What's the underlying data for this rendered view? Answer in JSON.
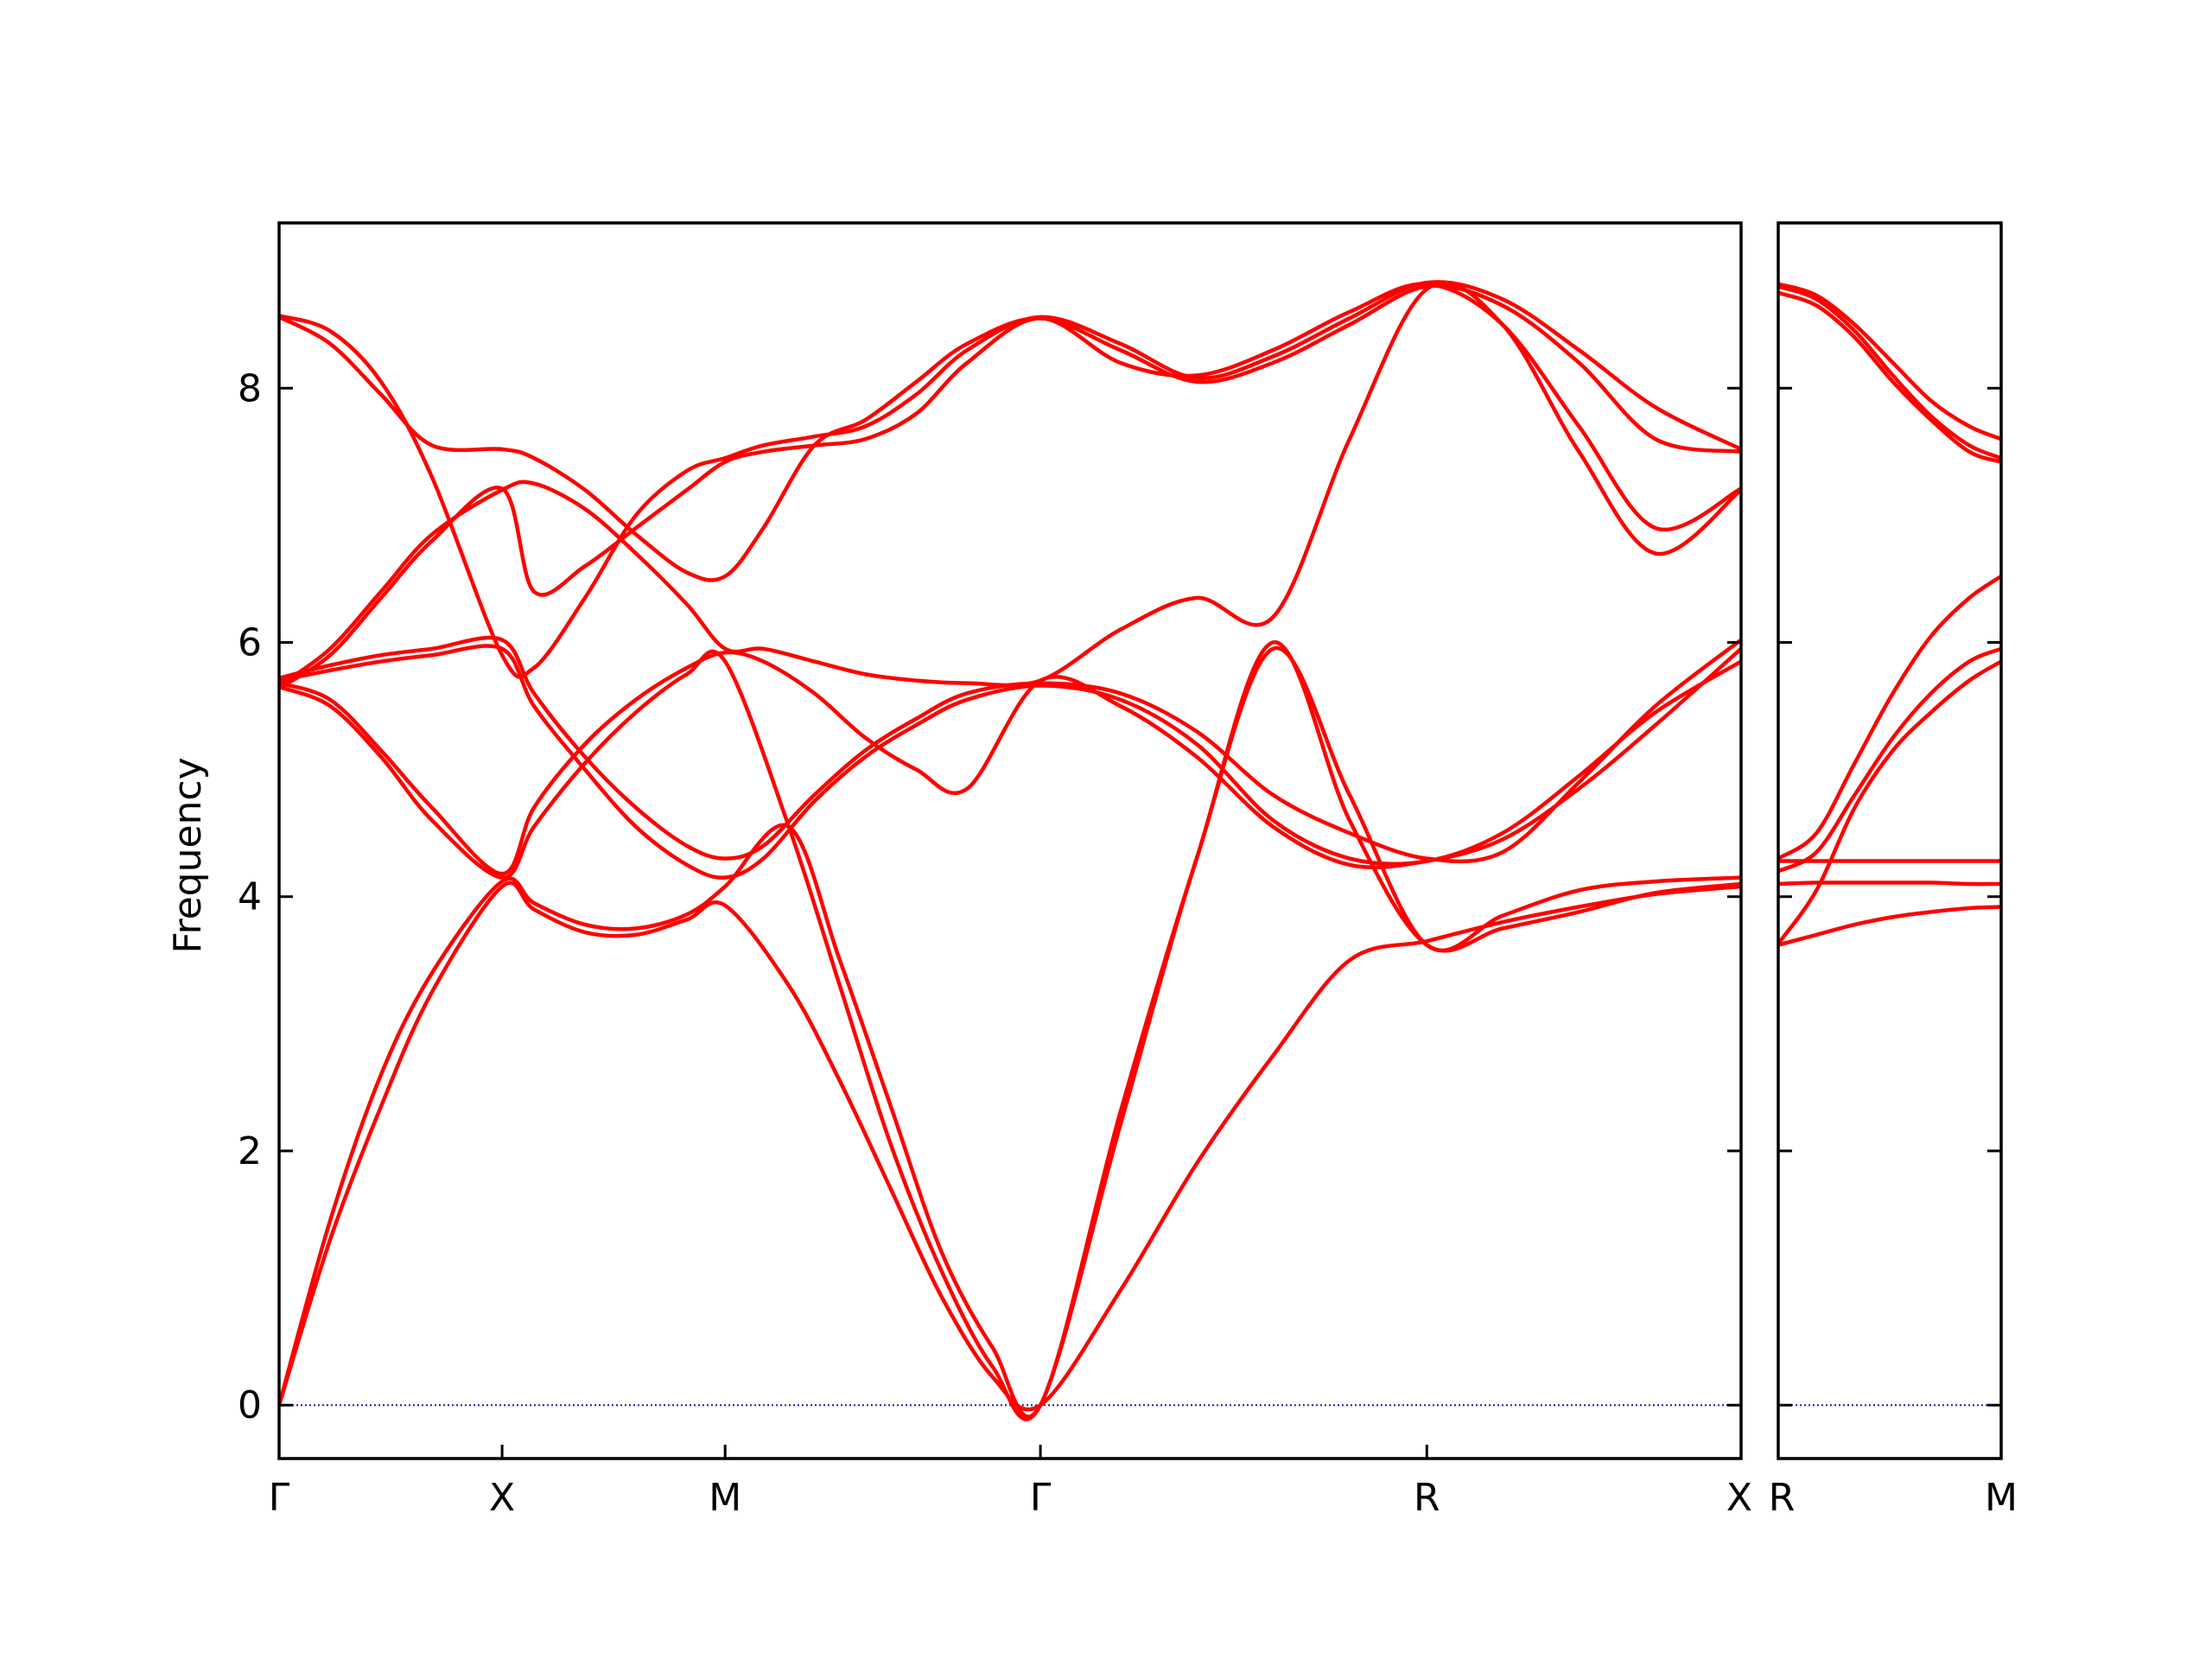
{
  "chart_data": {
    "type": "line",
    "ylabel": "Frequency",
    "ylim": [
      -0.42,
      9.3
    ],
    "yticks": [
      "0",
      "2",
      "4",
      "6",
      "8"
    ],
    "ytick_values": [
      0,
      2,
      4,
      6,
      8
    ],
    "grid": false,
    "colors": {
      "bands": "#ff0000",
      "zero_line": "#1a1aa8",
      "frame": "#000000"
    },
    "panels": [
      {
        "name": "Γ-X-M-Γ-R-X",
        "xlim": [
          0,
          5.736
        ],
        "xticks": [
          {
            "label": "Γ",
            "x": 0
          },
          {
            "label": "X",
            "x": 0.875
          },
          {
            "label": "M",
            "x": 1.75
          },
          {
            "label": "Γ",
            "x": 2.987
          },
          {
            "label": "R",
            "x": 4.503
          },
          {
            "label": "X",
            "x": 5.736
          }
        ],
        "series": [
          {
            "x": [
              0,
              0.2,
              0.4,
              0.6,
              0.875,
              1.0,
              1.2,
              1.4,
              1.6,
              1.75,
              2.0,
              2.2,
              2.4,
              2.6,
              2.8,
              2.987,
              3.3,
              3.6,
              3.9,
              4.2,
              4.503,
              4.8,
              5.1,
              5.4,
              5.736
            ],
            "y": [
              0,
              1.3,
              2.35,
              3.25,
              4.08,
              3.9,
              3.72,
              3.7,
              3.82,
              3.93,
              3.3,
              2.55,
              1.7,
              0.85,
              0.22,
              0,
              0.9,
              1.9,
              2.75,
              3.5,
              3.65,
              3.8,
              3.92,
              4.02,
              4.08
            ]
          },
          {
            "x": [
              0,
              0.2,
              0.4,
              0.6,
              0.875,
              1.0,
              1.2,
              1.4,
              1.6,
              1.75,
              2.0,
              2.2,
              2.4,
              2.6,
              2.8,
              2.987,
              3.3,
              3.6,
              3.9,
              4.2,
              4.503,
              4.8,
              5.1,
              5.4,
              5.736
            ],
            "y": [
              0,
              1.45,
              2.6,
              3.4,
              4.12,
              3.95,
              3.78,
              3.75,
              3.86,
              4.08,
              4.55,
              3.5,
              2.35,
              1.2,
              0.45,
              0,
              2.3,
              4.3,
              6.0,
              4.6,
              3.62,
              3.75,
              3.88,
              4.03,
              4.1
            ]
          },
          {
            "x": [
              0,
              0.2,
              0.4,
              0.6,
              0.875,
              1.0,
              1.2,
              1.4,
              1.6,
              1.75,
              2.0,
              2.2,
              2.4,
              2.6,
              2.8,
              2.987,
              3.3,
              3.6,
              3.9,
              4.2,
              4.503,
              4.8,
              5.1,
              5.4,
              5.736
            ],
            "y": [
              5.65,
              5.5,
              5.1,
              4.6,
              4.15,
              4.55,
              5.05,
              5.45,
              5.75,
              5.85,
              4.55,
              3.3,
              2.05,
              1.05,
              0.3,
              0,
              2.2,
              4.3,
              5.95,
              4.8,
              3.62,
              3.85,
              4.05,
              4.12,
              4.15
            ]
          },
          {
            "x": [
              0,
              0.2,
              0.4,
              0.6,
              0.875,
              1.0,
              1.2,
              1.4,
              1.6,
              1.75,
              1.9,
              2.1,
              2.3,
              2.5,
              2.7,
              2.987,
              3.3,
              3.6,
              3.9,
              4.2,
              4.503,
              4.8,
              5.1,
              5.4,
              5.736
            ],
            "y": [
              5.68,
              5.55,
              5.15,
              4.7,
              4.18,
              4.7,
              5.2,
              5.55,
              5.8,
              5.92,
              5.85,
              5.6,
              5.25,
              5.0,
              4.85,
              5.7,
              5.5,
              5.1,
              4.55,
              4.25,
              4.28,
              4.45,
              4.85,
              5.35,
              5.95
            ]
          },
          {
            "x": [
              0,
              0.2,
              0.4,
              0.6,
              0.875,
              1.0,
              1.2,
              1.4,
              1.6,
              1.75,
              1.9,
              2.1,
              2.3,
              2.5,
              2.7,
              2.987,
              3.3,
              3.6,
              3.9,
              4.2,
              4.503,
              4.8,
              5.1,
              5.4,
              5.736
            ],
            "y": [
              5.7,
              5.78,
              5.85,
              5.9,
              5.95,
              5.5,
              5.0,
              4.55,
              4.25,
              4.15,
              4.3,
              4.75,
              5.1,
              5.35,
              5.55,
              5.66,
              5.55,
              5.2,
              4.6,
              4.3,
              4.28,
              4.5,
              4.95,
              5.45,
              5.85
            ]
          },
          {
            "x": [
              0,
              0.2,
              0.4,
              0.6,
              0.875,
              1.0,
              1.2,
              1.4,
              1.6,
              1.75,
              1.9,
              2.1,
              2.3,
              2.5,
              2.7,
              2.987,
              3.3,
              3.6,
              3.9,
              4.2,
              4.503,
              4.8,
              5.1,
              5.4,
              5.736
            ],
            "y": [
              5.72,
              5.82,
              5.9,
              5.95,
              6.02,
              5.6,
              5.1,
              4.7,
              4.4,
              4.3,
              4.4,
              4.8,
              5.15,
              5.4,
              5.6,
              5.68,
              5.6,
              5.3,
              4.8,
              4.5,
              4.3,
              4.35,
              4.9,
              5.5,
              6.02
            ]
          },
          {
            "x": [
              0,
              0.2,
              0.4,
              0.6,
              0.875,
              1.0,
              1.2,
              1.4,
              1.6,
              1.75,
              1.9,
              2.1,
              2.3,
              2.5,
              2.7,
              2.987,
              3.3,
              3.6,
              3.9,
              4.2,
              4.503,
              4.8,
              5.1,
              5.4,
              5.736
            ],
            "y": [
              5.66,
              5.95,
              6.4,
              6.85,
              7.2,
              7.25,
              7.05,
              6.7,
              6.3,
              5.95,
              5.95,
              5.85,
              5.75,
              5.7,
              5.68,
              5.7,
              6.1,
              6.35,
              6.2,
              7.6,
              8.78,
              8.5,
              7.5,
              6.7,
              7.2
            ]
          },
          {
            "x": [
              0,
              0.2,
              0.4,
              0.6,
              0.875,
              1.0,
              1.2,
              1.4,
              1.6,
              1.75,
              1.9,
              2.1,
              2.3,
              2.5,
              2.7,
              2.987,
              3.3,
              3.6,
              3.9,
              4.2,
              4.503,
              4.8,
              5.1,
              5.4,
              5.736
            ],
            "y": [
              5.64,
              5.9,
              6.35,
              6.8,
              7.21,
              6.4,
              6.6,
              6.9,
              7.2,
              7.42,
              7.5,
              7.55,
              7.6,
              7.8,
              8.2,
              8.55,
              8.2,
              8.1,
              8.3,
              8.6,
              8.82,
              8.5,
              7.7,
              6.9,
              7.21
            ]
          },
          {
            "x": [
              0,
              0.2,
              0.4,
              0.6,
              0.875,
              1.0,
              1.2,
              1.4,
              1.6,
              1.75,
              1.9,
              2.1,
              2.3,
              2.5,
              2.7,
              2.987,
              3.3,
              3.6,
              3.9,
              4.2,
              4.503,
              4.8,
              5.1,
              5.4,
              5.736
            ],
            "y": [
              8.56,
              8.35,
              7.95,
              7.55,
              7.52,
              7.45,
              7.2,
              6.85,
              6.55,
              6.52,
              6.9,
              7.55,
              7.75,
              8.05,
              8.35,
              8.55,
              8.3,
              8.05,
              8.2,
              8.5,
              8.8,
              8.65,
              8.2,
              7.6,
              7.5
            ]
          },
          {
            "x": [
              0,
              0.2,
              0.4,
              0.6,
              0.875,
              1.0,
              1.2,
              1.4,
              1.6,
              1.75,
              1.9,
              2.1,
              2.3,
              2.5,
              2.7,
              2.987,
              3.3,
              3.6,
              3.9,
              4.2,
              4.503,
              4.8,
              5.1,
              5.4,
              5.736
            ],
            "y": [
              8.57,
              8.45,
              8.05,
              7.3,
              5.9,
              5.8,
              6.35,
              7.0,
              7.35,
              7.45,
              7.55,
              7.62,
              7.7,
              7.95,
              8.3,
              8.56,
              8.35,
              8.08,
              8.25,
              8.55,
              8.83,
              8.7,
              8.3,
              7.85,
              7.52
            ]
          }
        ]
      },
      {
        "name": "R-M",
        "xlim": [
          0,
          0.875
        ],
        "xticks": [
          {
            "label": "R",
            "x": 0
          },
          {
            "label": "M",
            "x": 0.875
          }
        ],
        "series": [
          {
            "x": [
              0,
              0.15,
              0.3,
              0.45,
              0.6,
              0.75,
              0.875
            ],
            "y": [
              3.62,
              3.7,
              3.78,
              3.84,
              3.88,
              3.91,
              3.92
            ]
          },
          {
            "x": [
              0,
              0.15,
              0.3,
              0.45,
              0.6,
              0.75,
              0.875
            ],
            "y": [
              3.63,
              4.05,
              4.7,
              5.15,
              5.45,
              5.7,
              5.85
            ]
          },
          {
            "x": [
              0,
              0.15,
              0.3,
              0.45,
              0.6,
              0.75,
              0.875
            ],
            "y": [
              4.1,
              4.11,
              4.11,
              4.11,
              4.11,
              4.1,
              4.1
            ]
          },
          {
            "x": [
              0,
              0.15,
              0.3,
              0.45,
              0.6,
              0.75,
              0.875
            ],
            "y": [
              4.2,
              4.35,
              4.8,
              5.25,
              5.6,
              5.85,
              5.95
            ]
          },
          {
            "x": [
              0,
              0.15,
              0.3,
              0.45,
              0.6,
              0.75,
              0.875
            ],
            "y": [
              4.28,
              4.28,
              4.28,
              4.28,
              4.28,
              4.28,
              4.28
            ]
          },
          {
            "x": [
              0,
              0.15,
              0.3,
              0.45,
              0.6,
              0.75,
              0.875
            ],
            "y": [
              4.3,
              4.5,
              5.05,
              5.6,
              6.05,
              6.35,
              6.52
            ]
          },
          {
            "x": [
              0,
              0.15,
              0.3,
              0.45,
              0.6,
              0.75,
              0.875
            ],
            "y": [
              8.75,
              8.65,
              8.4,
              8.05,
              7.75,
              7.5,
              7.42
            ]
          },
          {
            "x": [
              0,
              0.15,
              0.3,
              0.45,
              0.6,
              0.75,
              0.875
            ],
            "y": [
              8.8,
              8.7,
              8.45,
              8.1,
              7.78,
              7.55,
              7.45
            ]
          },
          {
            "x": [
              0,
              0.15,
              0.3,
              0.45,
              0.6,
              0.75,
              0.875
            ],
            "y": [
              8.82,
              8.73,
              8.5,
              8.2,
              7.9,
              7.7,
              7.6
            ]
          }
        ]
      }
    ]
  }
}
